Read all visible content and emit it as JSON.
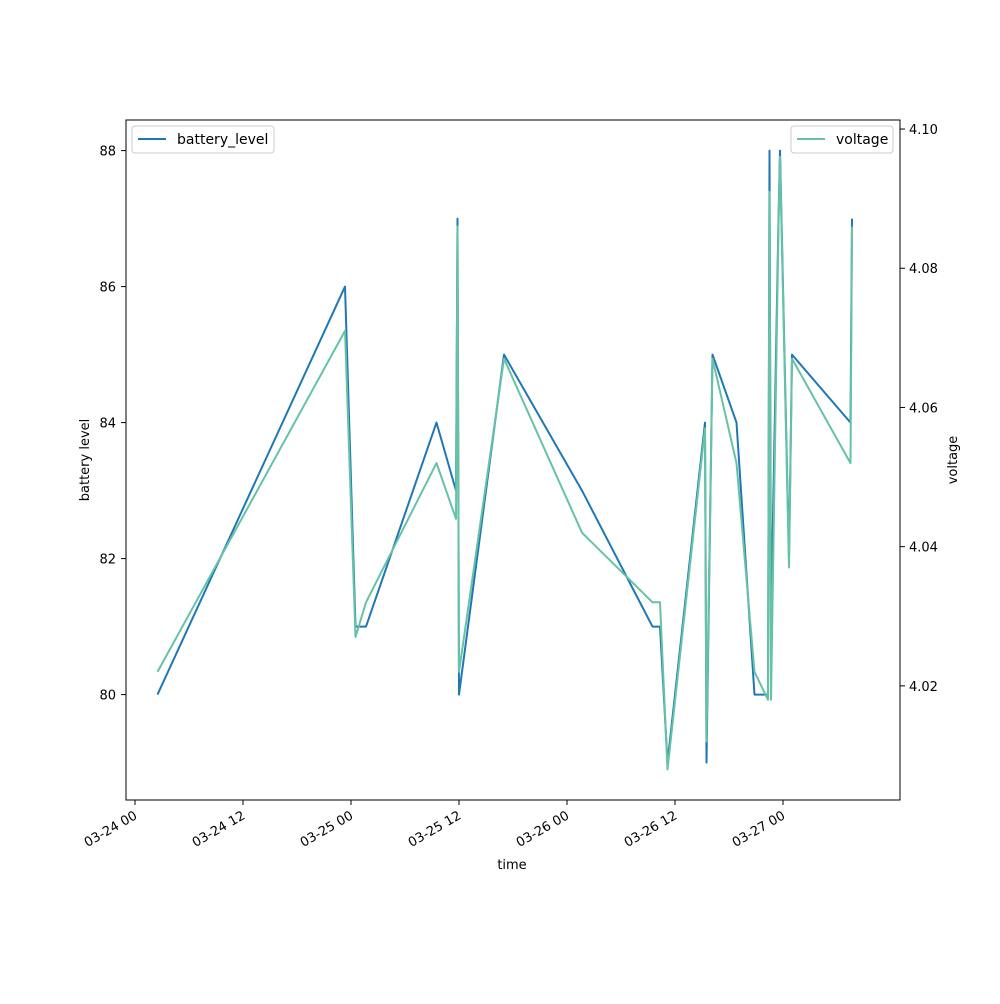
{
  "chart_data": {
    "type": "line",
    "title": "",
    "xlabel": "time",
    "ylabel": "battery level",
    "y2label": "voltage",
    "x_ticks": [
      "03-24 00",
      "03-24 12",
      "03-25 00",
      "03-25 12",
      "03-26 00",
      "03-26 12",
      "03-27 00"
    ],
    "y_ticks": [
      "80",
      "82",
      "84",
      "86",
      "88"
    ],
    "y2_ticks": [
      "4.02",
      "4.04",
      "4.06",
      "4.08",
      "4.10"
    ],
    "ylim": [
      78.45,
      88.45
    ],
    "y2lim": [
      4.0036,
      4.1013
    ],
    "xlim": [
      "2024-03-23T23:00",
      "2024-03-27T13:00"
    ],
    "legend_left": "top-left",
    "legend_right": "top-right",
    "colors": {
      "battery_level": "#1f77b4",
      "voltage": "#66c2a5"
    },
    "series": [
      {
        "name": "battery_level",
        "axis": "left",
        "points": [
          [
            "2024-03-24T02:30",
            80
          ],
          [
            "2024-03-24T23:20",
            86
          ],
          [
            "2024-03-25T00:30",
            81
          ],
          [
            "2024-03-25T01:40",
            81
          ],
          [
            "2024-03-25T09:30",
            84
          ],
          [
            "2024-03-25T11:40",
            83
          ],
          [
            "2024-03-25T11:50",
            87
          ],
          [
            "2024-03-25T12:00",
            80
          ],
          [
            "2024-03-25T17:00",
            85
          ],
          [
            "2024-03-26T01:40",
            83
          ],
          [
            "2024-03-26T09:30",
            81
          ],
          [
            "2024-03-26T10:20",
            81
          ],
          [
            "2024-03-26T11:10",
            79
          ],
          [
            "2024-03-26T15:20",
            84
          ],
          [
            "2024-03-26T15:30",
            79
          ],
          [
            "2024-03-26T16:10",
            85
          ],
          [
            "2024-03-26T18:50",
            84
          ],
          [
            "2024-03-26T20:50",
            80
          ],
          [
            "2024-03-26T22:20",
            80
          ],
          [
            "2024-03-26T22:30",
            88
          ],
          [
            "2024-03-26T22:40",
            81
          ],
          [
            "2024-03-26T23:30",
            87
          ],
          [
            "2024-03-26T23:40",
            88
          ],
          [
            "2024-03-27T00:40",
            82
          ],
          [
            "2024-03-27T01:00",
            85
          ],
          [
            "2024-03-27T07:30",
            84
          ],
          [
            "2024-03-27T07:40",
            87
          ]
        ]
      },
      {
        "name": "voltage",
        "axis": "right",
        "points": [
          [
            "2024-03-24T02:30",
            4.022
          ],
          [
            "2024-03-24T23:20",
            4.071
          ],
          [
            "2024-03-25T00:30",
            4.027
          ],
          [
            "2024-03-25T01:40",
            4.032
          ],
          [
            "2024-03-25T09:30",
            4.052
          ],
          [
            "2024-03-25T11:40",
            4.044
          ],
          [
            "2024-03-25T11:50",
            4.086
          ],
          [
            "2024-03-25T12:00",
            4.022
          ],
          [
            "2024-03-25T17:00",
            4.067
          ],
          [
            "2024-03-26T01:40",
            4.042
          ],
          [
            "2024-03-26T09:30",
            4.032
          ],
          [
            "2024-03-26T10:20",
            4.032
          ],
          [
            "2024-03-26T11:10",
            4.008
          ],
          [
            "2024-03-26T15:20",
            4.057
          ],
          [
            "2024-03-26T15:30",
            4.012
          ],
          [
            "2024-03-26T16:10",
            4.067
          ],
          [
            "2024-03-26T18:50",
            4.052
          ],
          [
            "2024-03-26T20:50",
            4.022
          ],
          [
            "2024-03-26T22:20",
            4.018
          ],
          [
            "2024-03-26T22:30",
            4.091
          ],
          [
            "2024-03-26T22:40",
            4.018
          ],
          [
            "2024-03-26T23:30",
            4.086
          ],
          [
            "2024-03-26T23:40",
            4.096
          ],
          [
            "2024-03-27T00:40",
            4.037
          ],
          [
            "2024-03-27T01:00",
            4.067
          ],
          [
            "2024-03-27T07:30",
            4.052
          ],
          [
            "2024-03-27T07:40",
            4.086
          ]
        ]
      }
    ]
  }
}
